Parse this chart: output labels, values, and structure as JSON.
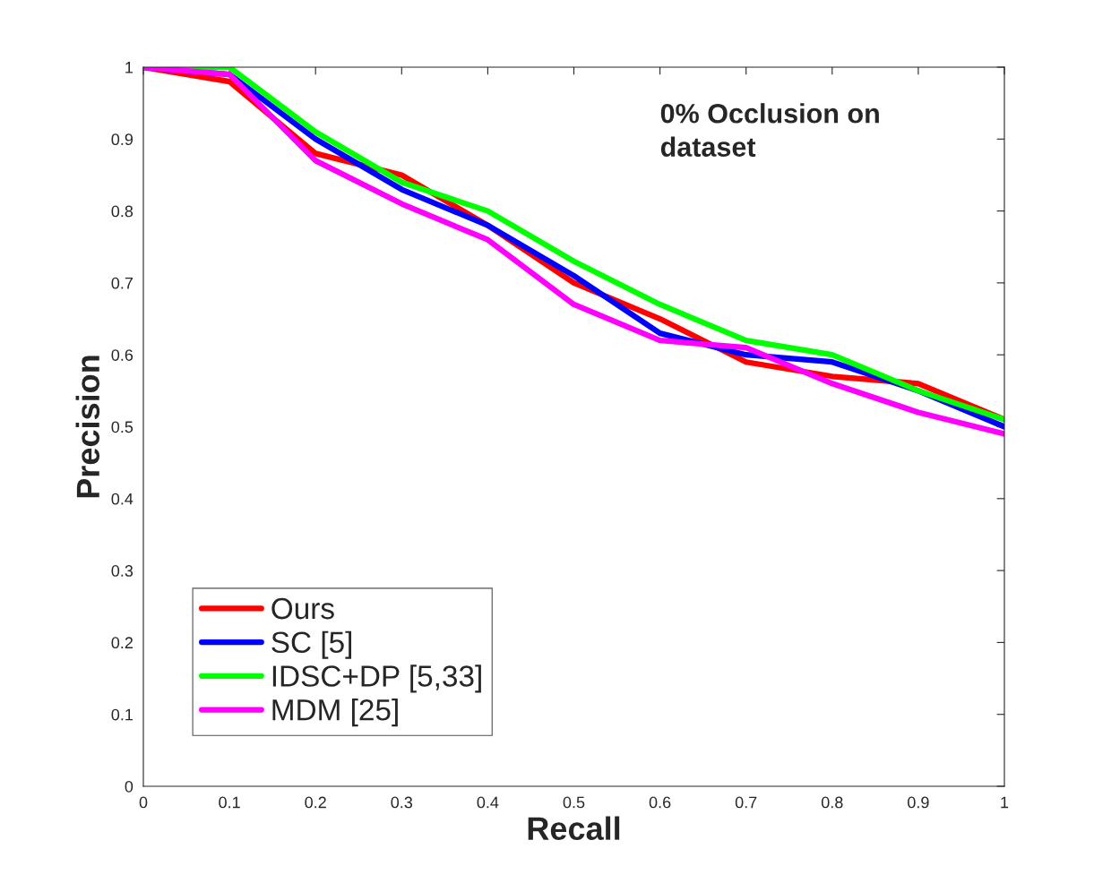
{
  "chart_data": {
    "type": "line",
    "annotations": [
      "0% Occlusion on\ndataset"
    ],
    "xlabel": "Recall",
    "ylabel": "Precision",
    "x": [
      0,
      0.1,
      0.2,
      0.3,
      0.4,
      0.5,
      0.6,
      0.7,
      0.8,
      0.9,
      1
    ],
    "series": [
      {
        "name": "Ours",
        "color": "#ff0000",
        "values": [
          1,
          0.98,
          0.88,
          0.85,
          0.78,
          0.7,
          0.65,
          0.59,
          0.57,
          0.56,
          0.51
        ]
      },
      {
        "name": "SC [5]",
        "color": "#0000ff",
        "values": [
          1,
          0.99,
          0.9,
          0.83,
          0.78,
          0.71,
          0.63,
          0.6,
          0.59,
          0.55,
          0.5
        ]
      },
      {
        "name": "IDSC+DP [5,33]",
        "color": "#00ff00",
        "values": [
          1,
          1,
          0.91,
          0.84,
          0.8,
          0.73,
          0.67,
          0.62,
          0.6,
          0.55,
          0.51
        ]
      },
      {
        "name": "MDM [25]",
        "color": "#ff00ff",
        "values": [
          1,
          0.99,
          0.87,
          0.81,
          0.76,
          0.67,
          0.62,
          0.61,
          0.56,
          0.52,
          0.49
        ]
      }
    ],
    "xlim": [
      0,
      1
    ],
    "ylim": [
      0,
      1
    ],
    "xticks": [
      0,
      0.1,
      0.2,
      0.3,
      0.4,
      0.5,
      0.6,
      0.7,
      0.8,
      0.9,
      1
    ],
    "yticks": [
      0,
      0.1,
      0.2,
      0.3,
      0.4,
      0.5,
      0.6,
      0.7,
      0.8,
      0.9,
      1
    ],
    "grid": false,
    "legend": "bottom left",
    "marker": "none",
    "line_style": "solid"
  }
}
